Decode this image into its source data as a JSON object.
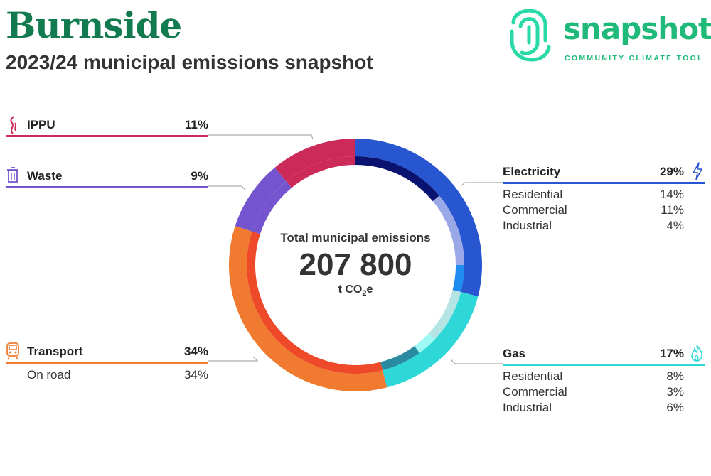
{
  "header": {
    "title": "Burnside",
    "subtitle": "2023/24 municipal emissions snapshot"
  },
  "logo": {
    "word": "snapshot",
    "tagline": "COMMUNITY CLIMATE TOOL",
    "color": "#1fb979"
  },
  "center": {
    "label": "Total municipal emissions",
    "value": "207 800",
    "unit_prefix": "t CO",
    "unit_sub": "2",
    "unit_suffix": "e"
  },
  "chart_data": {
    "type": "pie",
    "total": "207 800",
    "unit": "t CO2e",
    "categories": [
      {
        "name": "Electricity",
        "percent": 29,
        "color": "#2855d0",
        "icon": "lightning-icon",
        "subs": [
          {
            "name": "Residential",
            "percent": 14,
            "color": "#0a1470"
          },
          {
            "name": "Commercial",
            "percent": 11,
            "color": "#9aa8e8"
          },
          {
            "name": "Industrial",
            "percent": 4,
            "color": "#1e8cf0"
          }
        ]
      },
      {
        "name": "Gas",
        "percent": 17,
        "color": "#2fd8d8",
        "icon": "flame-icon",
        "subs": [
          {
            "name": "Residential",
            "percent": 8,
            "color": "#b4e4e4"
          },
          {
            "name": "Commercial",
            "percent": 3,
            "color": "#9ef8f6"
          },
          {
            "name": "Industrial",
            "percent": 6,
            "color": "#2a8aa0"
          }
        ]
      },
      {
        "name": "Transport",
        "percent": 34,
        "color": "#f07a30",
        "icon": "train-icon",
        "subs": [
          {
            "name": "On road",
            "percent": 34,
            "color": "#ee4a2a"
          }
        ]
      },
      {
        "name": "Waste",
        "percent": 9,
        "color": "#7455cf",
        "icon": "trash-icon",
        "subs": []
      },
      {
        "name": "IPPU",
        "percent": 11,
        "color": "#cc2a58",
        "icon": "smoke-icon",
        "subs": []
      }
    ]
  }
}
